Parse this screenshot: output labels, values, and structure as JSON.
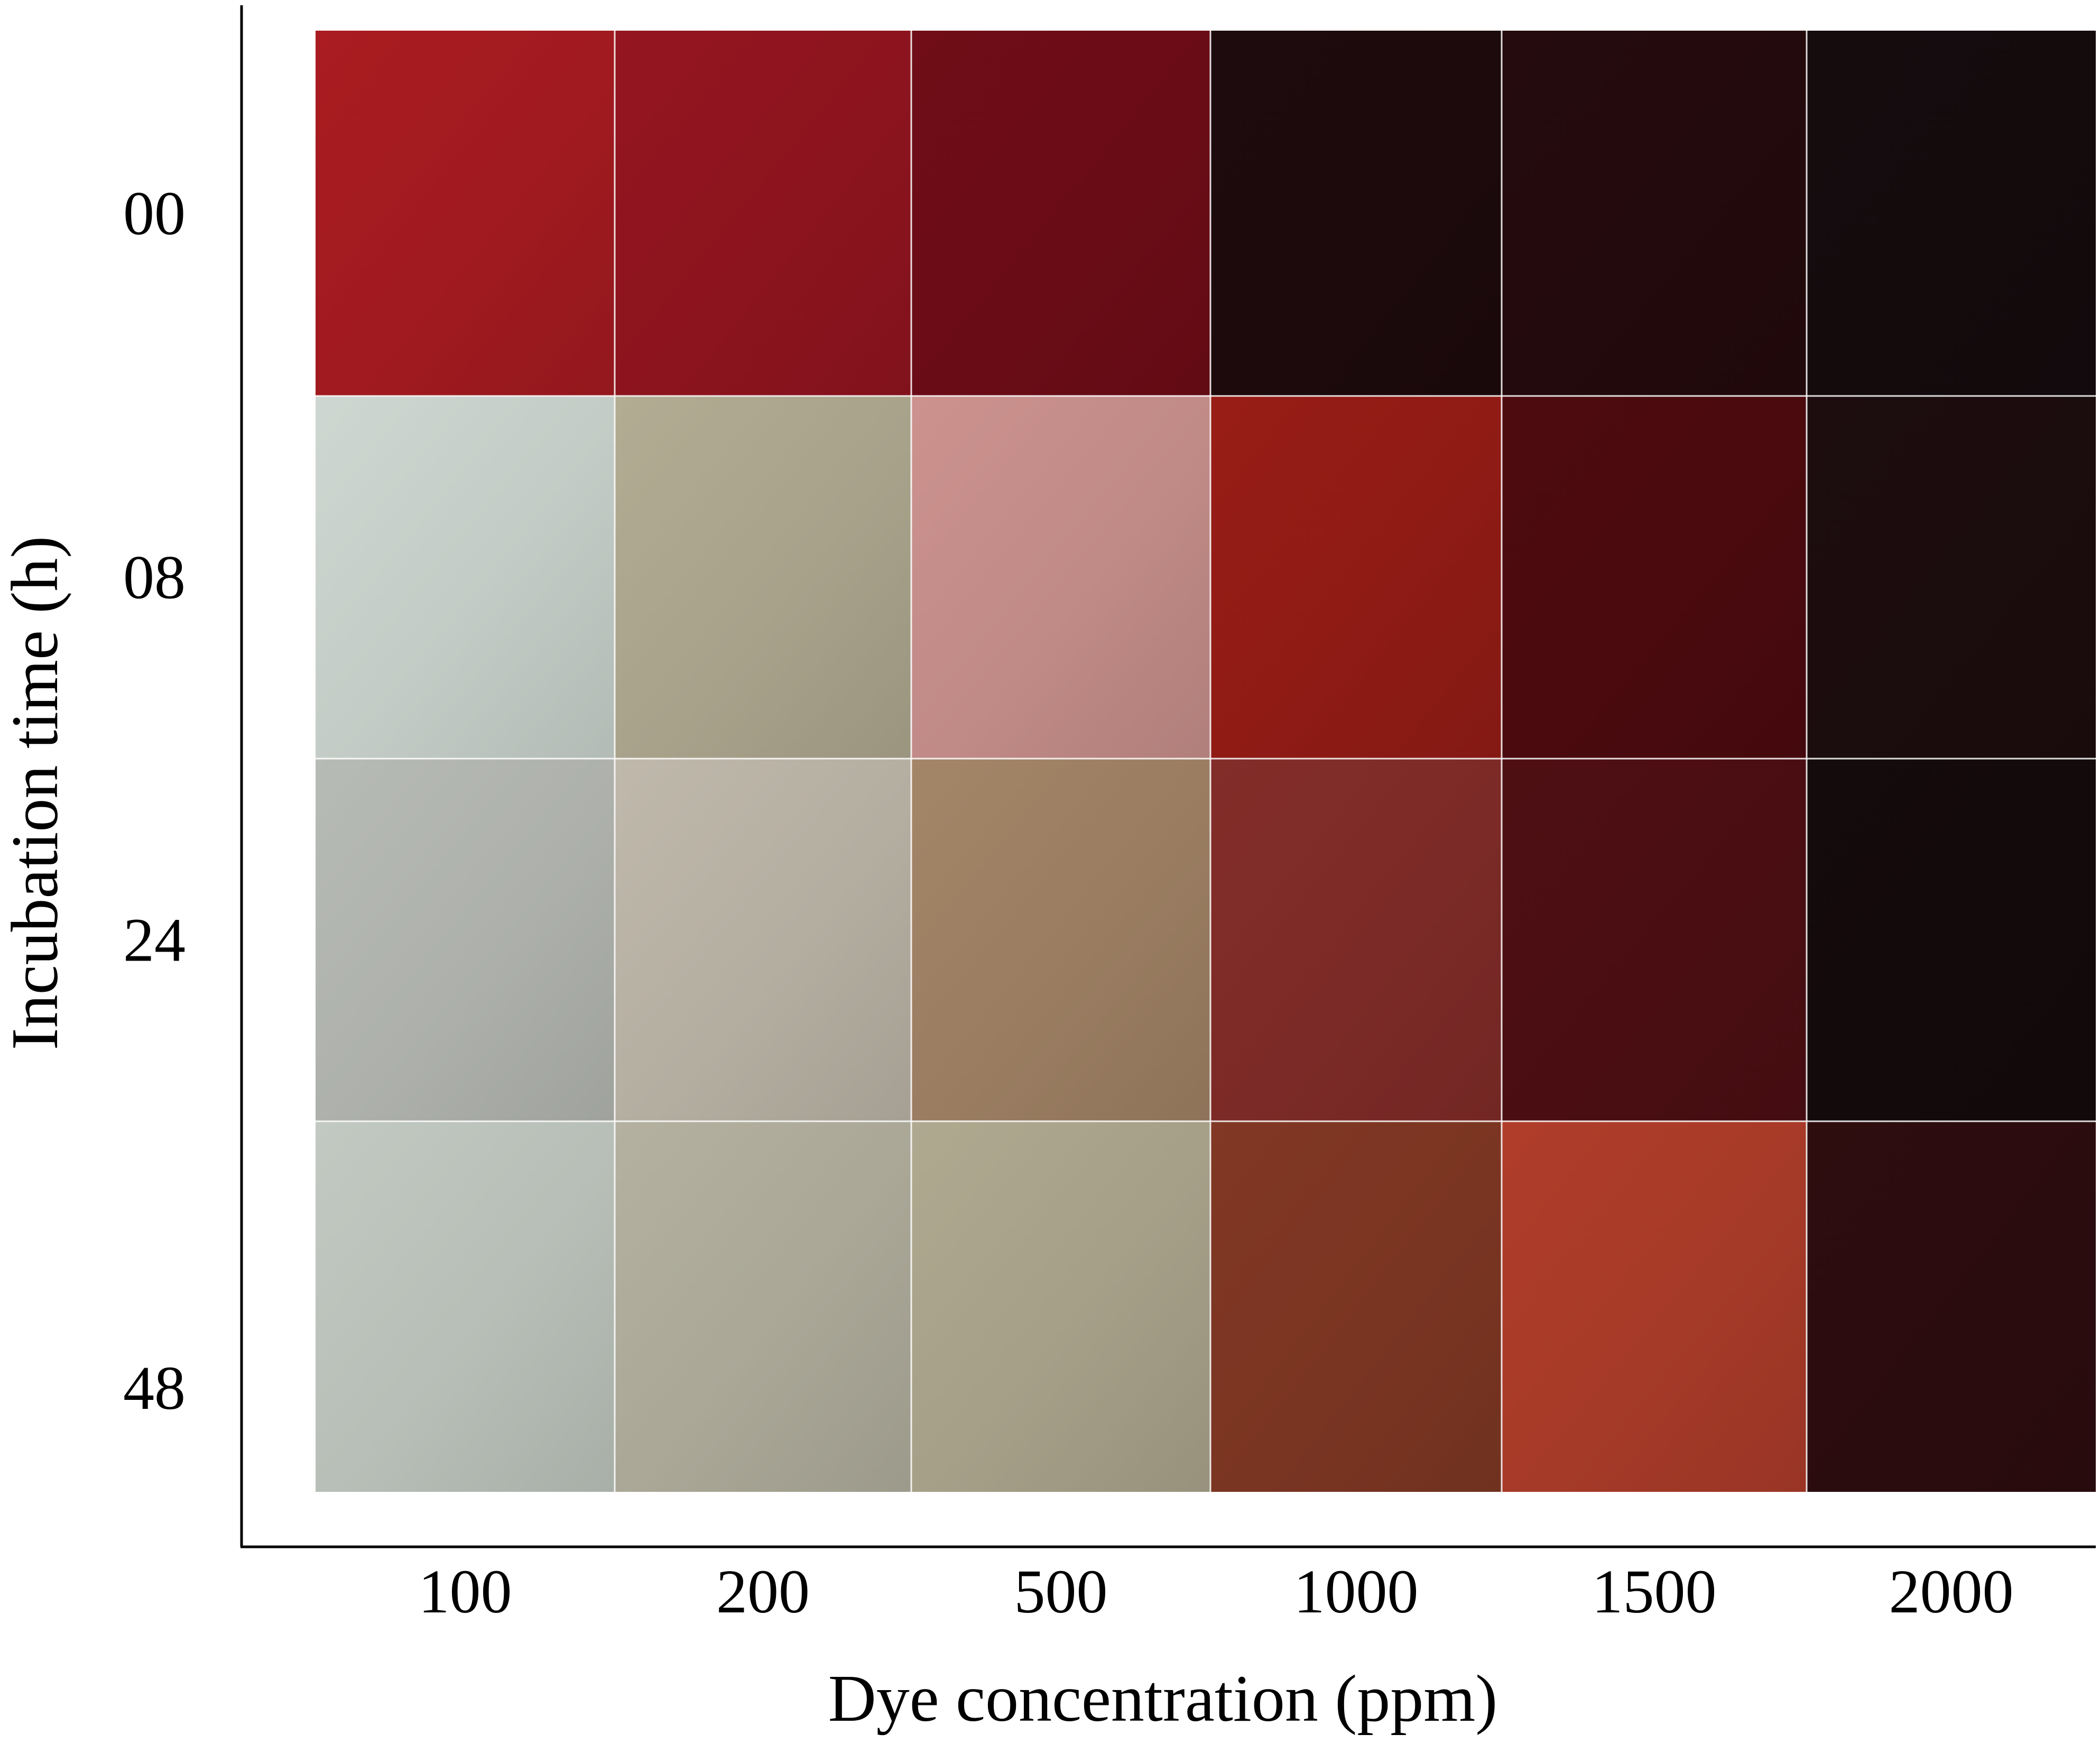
{
  "chart_data": {
    "type": "heatmap",
    "title": "",
    "xlabel": "Dye concentration (ppm)",
    "ylabel": "Incubation time (h)",
    "x_categories": [
      "100",
      "200",
      "500",
      "1000",
      "1500",
      "2000"
    ],
    "y_categories": [
      "00",
      "08",
      "24",
      "48"
    ],
    "cell_values_description": "observed sample color per cell (hex)",
    "cells": [
      [
        "#a01a1f",
        "#8c141e",
        "#6a0c16",
        "#1c0a0c",
        "#230a0c",
        "#140b0d"
      ],
      [
        "#c3cbc6",
        "#a8a28b",
        "#c08a86",
        "#8f1b15",
        "#4a0a0e",
        "#1b0c0d"
      ],
      [
        "#adb0ab",
        "#b4aea1",
        "#9a7d61",
        "#7c2a27",
        "#4a0e12",
        "#130a0b"
      ],
      [
        "#b7beb7",
        "#aaa797",
        "#a59f88",
        "#7a3522",
        "#a63a28",
        "#2b0c0e"
      ]
    ],
    "grid": false,
    "legend": "none"
  }
}
